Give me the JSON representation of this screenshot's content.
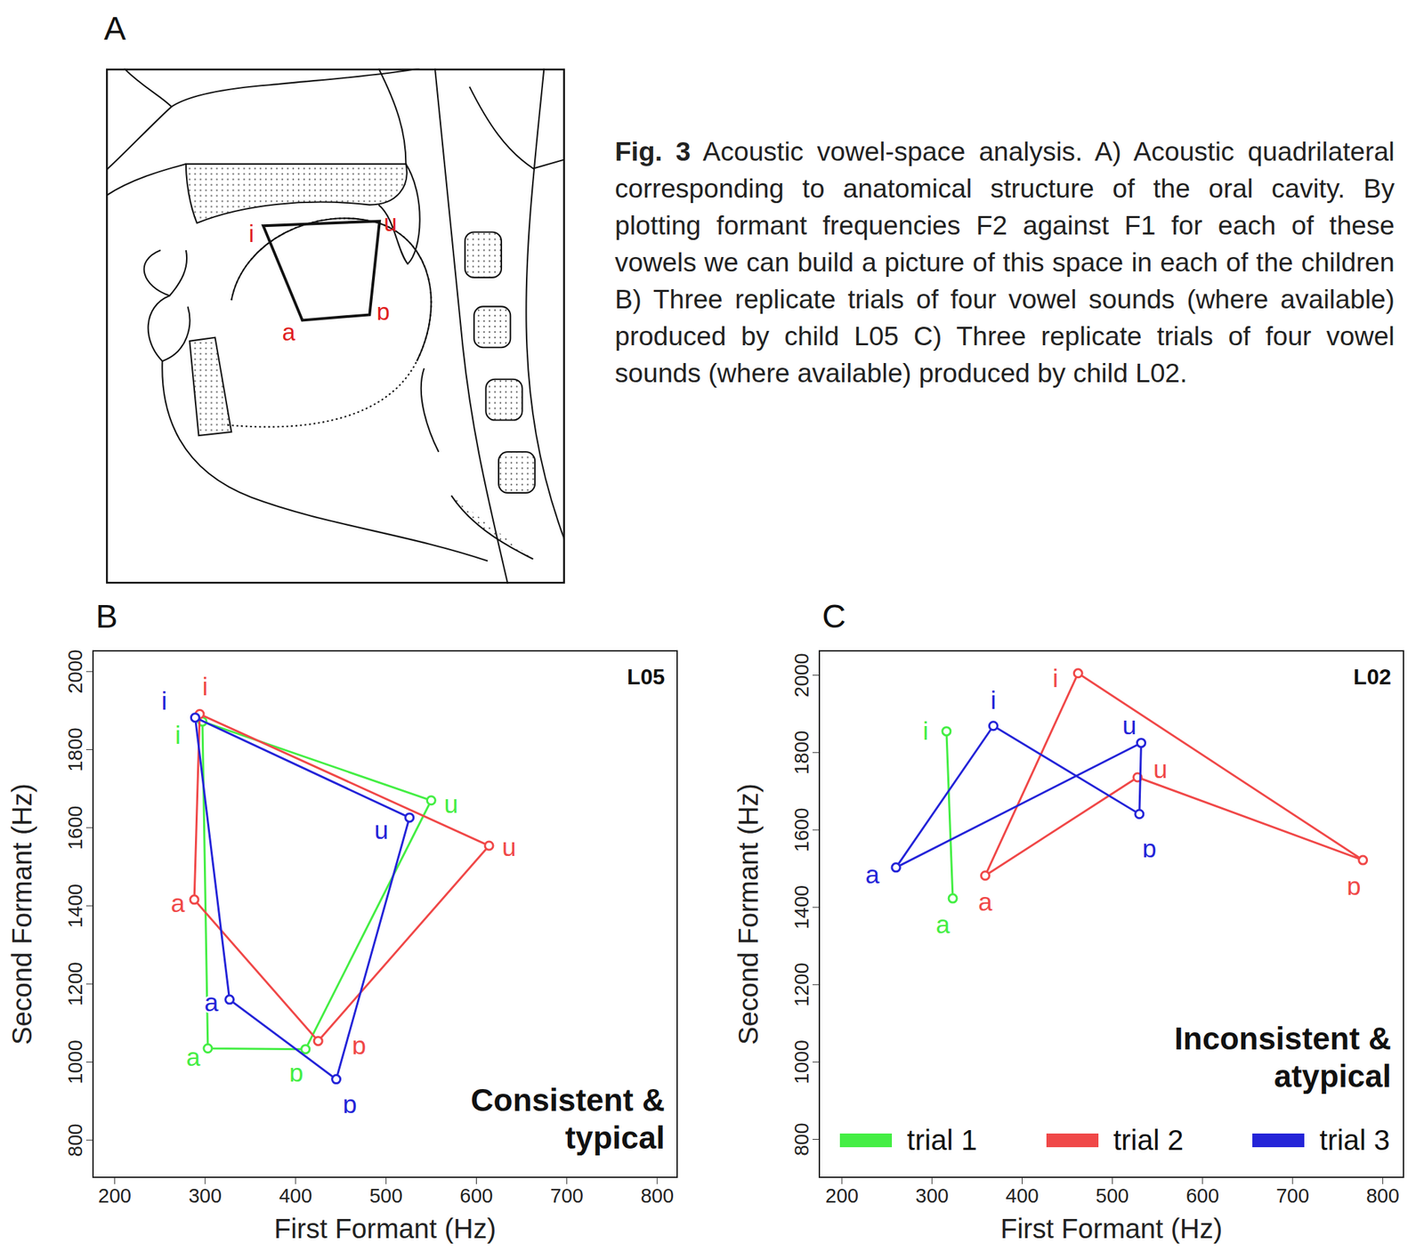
{
  "figure": {
    "caption_label": "Fig. 3",
    "caption": "Acoustic vowel-space analysis. A) Acoustic quadrilateral corresponding to anatomical structure of the oral cavity.  By plotting formant frequencies F2 against F1 for each of these vowels we can build a picture of this space in each of the children B) Three replicate trials of four vowel sounds (where available) produced by child L05 C) Three replicate trials of four vowel sounds (where available) produced by child L02."
  },
  "diagram": {
    "panel": "A",
    "vowels": [
      "i",
      "u",
      "ɒ",
      "a"
    ]
  },
  "chart_data": [
    {
      "type": "scatter",
      "panel": "B",
      "title": "L05",
      "annotation": "Consistent & typical",
      "x_label": "First Formant (Hz)",
      "y_label": "Second Formant (Hz)",
      "xlim": [
        176,
        822
      ],
      "ylim": [
        705,
        2053
      ],
      "xticks": [
        200,
        300,
        400,
        500,
        600,
        700,
        800
      ],
      "yticks": [
        800,
        1000,
        1200,
        1400,
        1600,
        1800,
        2000
      ],
      "marker": "circle",
      "line_style": "solid",
      "legend": false,
      "series": [
        {
          "color": "#44ee44",
          "labels": [
            "i",
            "u",
            "ɒ",
            "a"
          ],
          "x": [
            297,
            550,
            411,
            303
          ],
          "values": [
            1872,
            1670,
            1033,
            1035
          ]
        },
        {
          "color": "#f04848",
          "labels": [
            "i",
            "u",
            "ɒ",
            "a"
          ],
          "x": [
            294,
            614,
            425,
            288
          ],
          "values": [
            1891,
            1554,
            1054,
            1416
          ]
        },
        {
          "color": "#2424d8",
          "labels": [
            "i",
            "u",
            "ɒ",
            "a"
          ],
          "x": [
            289,
            526,
            445,
            327
          ],
          "values": [
            1882,
            1626,
            956,
            1160
          ]
        }
      ]
    },
    {
      "type": "scatter",
      "panel": "C",
      "title": "L02",
      "annotation": "Inconsistent & atypical",
      "x_label": "First Formant (Hz)",
      "y_label": "Second Formant (Hz)",
      "xlim": [
        175,
        823
      ],
      "ylim": [
        702,
        2063
      ],
      "xticks": [
        200,
        300,
        400,
        500,
        600,
        700,
        800
      ],
      "yticks": [
        800,
        1000,
        1200,
        1400,
        1600,
        1800,
        2000
      ],
      "marker": "circle",
      "line_style": "solid",
      "legend": "bottom",
      "series": [
        {
          "name": "trial 1",
          "color": "#44ee44",
          "labels": [
            "i",
            "a"
          ],
          "x": [
            316,
            323
          ],
          "values": [
            1855,
            1423
          ]
        },
        {
          "name": "trial 2",
          "color": "#f04848",
          "labels": [
            "i",
            "ɒ",
            "u",
            "a"
          ],
          "x": [
            462,
            778,
            528,
            359
          ],
          "values": [
            2005,
            1522,
            1736,
            1482
          ]
        },
        {
          "name": "trial 3",
          "color": "#2424d8",
          "labels": [
            "i",
            "ɒ",
            "u",
            "a"
          ],
          "x": [
            368,
            530,
            532,
            260
          ],
          "values": [
            1869,
            1641,
            1825,
            1503
          ]
        }
      ]
    }
  ]
}
